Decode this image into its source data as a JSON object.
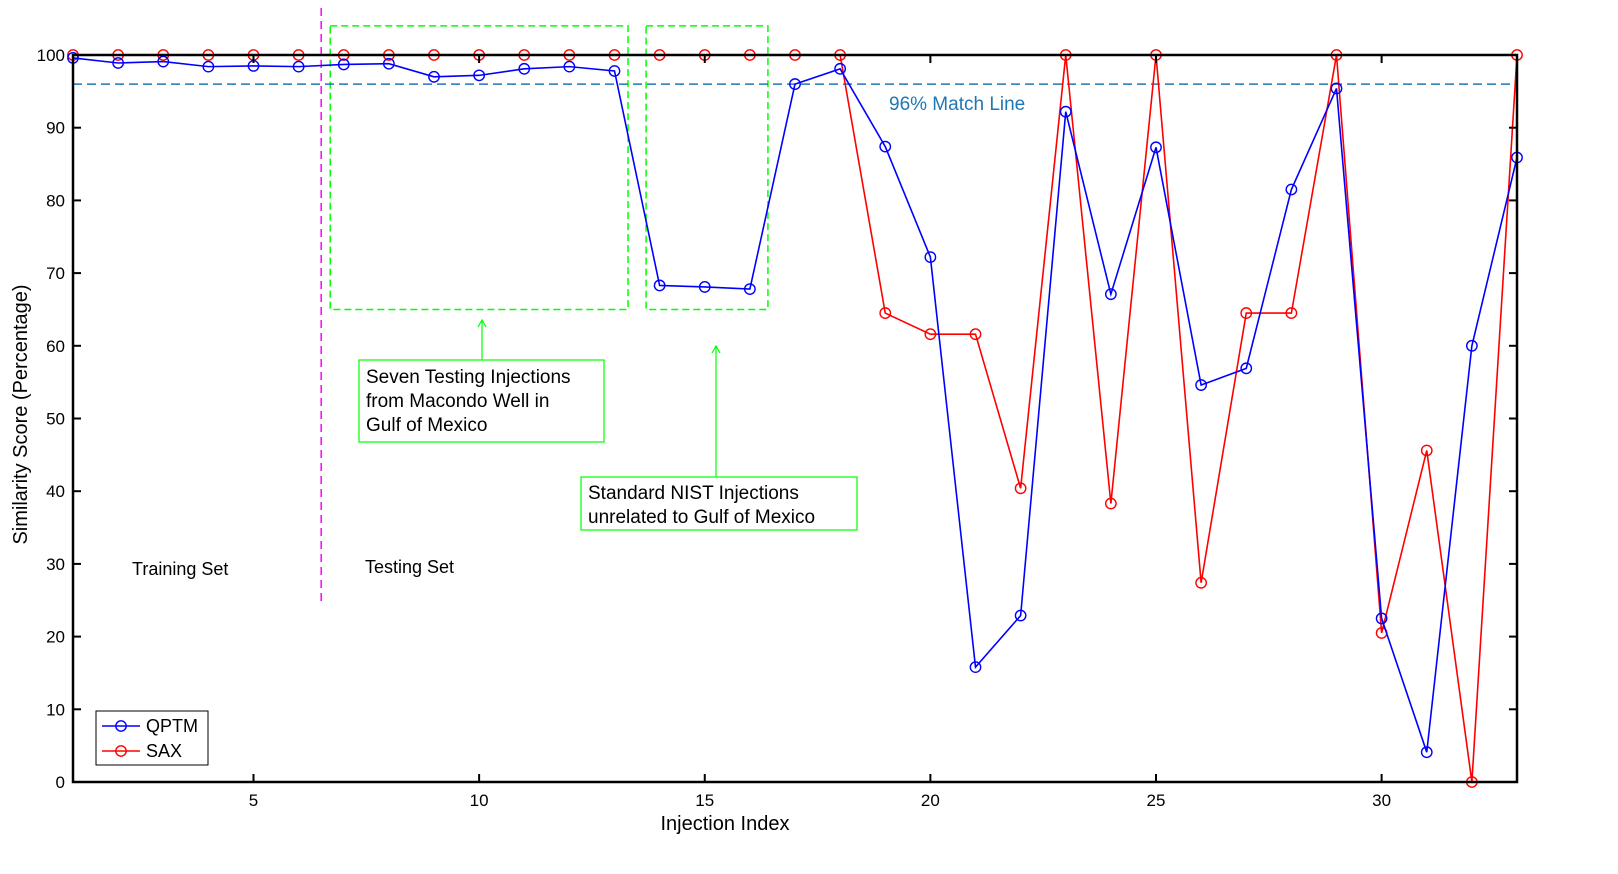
{
  "colors": {
    "qptm": "#0000ff",
    "sax": "#ff0000",
    "match_line": "#1f77b4",
    "divider": "#ff00ff",
    "highlight": "#00ff00",
    "axis": "#000000"
  },
  "chart_data": {
    "type": "line",
    "xlabel": "Injection Index",
    "ylabel": "Similarity Score (Percentage)",
    "xlim": [
      1,
      33
    ],
    "ylim": [
      0,
      100
    ],
    "xticks": [
      5,
      10,
      15,
      20,
      25,
      30
    ],
    "yticks": [
      0,
      10,
      20,
      30,
      40,
      50,
      60,
      70,
      80,
      90,
      100
    ],
    "grid": false,
    "legend_position": "bottom-left",
    "x": [
      1,
      2,
      3,
      4,
      5,
      6,
      7,
      8,
      9,
      10,
      11,
      12,
      13,
      14,
      15,
      16,
      17,
      18,
      19,
      20,
      21,
      22,
      23,
      24,
      25,
      26,
      27,
      28,
      29,
      30,
      31,
      32,
      33
    ],
    "series": [
      {
        "name": "QPTM",
        "color": "#0000ff",
        "values": [
          99.6,
          98.9,
          99.1,
          98.4,
          98.5,
          98.4,
          98.7,
          98.8,
          97.0,
          97.2,
          98.1,
          98.4,
          97.8,
          68.3,
          68.1,
          67.8,
          96.0,
          98.1,
          87.4,
          72.2,
          15.8,
          22.9,
          92.2,
          67.1,
          87.3,
          54.6,
          56.9,
          81.5,
          95.4,
          22.5,
          4.1,
          60.0,
          85.9
        ]
      },
      {
        "name": "SAX",
        "color": "#ff0000",
        "values": [
          100,
          100,
          100,
          100,
          100,
          100,
          100,
          100,
          100,
          100,
          100,
          100,
          100,
          100,
          100,
          100,
          100,
          100,
          64.5,
          61.6,
          61.6,
          40.4,
          100,
          38.3,
          100,
          27.4,
          64.5,
          64.5,
          100,
          20.5,
          45.6,
          0,
          100
        ]
      }
    ],
    "reference_line": {
      "y": 96,
      "label": "96% Match Line"
    },
    "divider_x": 6.5,
    "region_labels": {
      "training": "Training Set",
      "testing": "Testing Set"
    },
    "highlight_boxes": [
      {
        "x_from": 6.7,
        "x_to": 13.3,
        "y_from": 65,
        "y_to": 104
      },
      {
        "x_from": 13.7,
        "x_to": 16.4,
        "y_from": 65,
        "y_to": 104
      }
    ],
    "annotations": [
      {
        "lines": [
          "Seven Testing Injections",
          "from Macondo Well in",
          "Gulf of Mexico"
        ]
      },
      {
        "lines": [
          "Standard NIST Injections",
          "unrelated to Gulf of Mexico"
        ]
      }
    ]
  }
}
